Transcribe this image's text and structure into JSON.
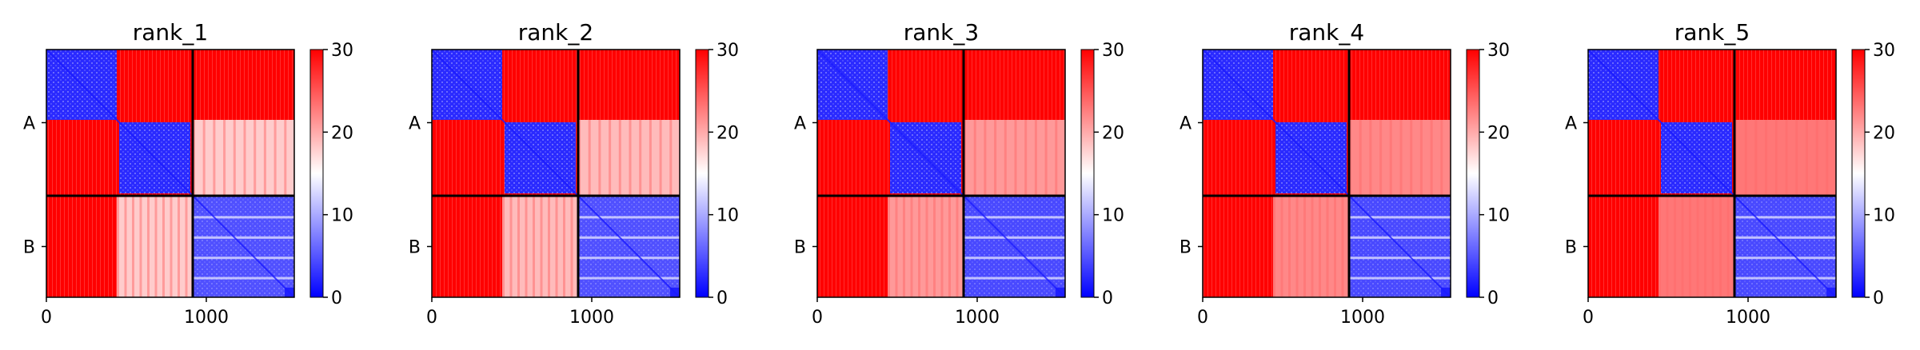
{
  "figure": {
    "background": "#ffffff",
    "colormap": {
      "name": "bwr",
      "low": "#0000ff",
      "mid": "#ffffff",
      "high": "#ff0000"
    }
  },
  "chart_data": {
    "type": "heatmap",
    "value_range": [
      0,
      30
    ],
    "x_range": [
      0,
      1550
    ],
    "x_ticks": [
      0,
      1000
    ],
    "x_tick_labels": [
      "0",
      "1000"
    ],
    "chain_labels": [
      "A",
      "B"
    ],
    "chain_boundary": 915,
    "colorbar_ticks": [
      0,
      10,
      20,
      30
    ],
    "colorbar_tick_labels": [
      "0",
      "10",
      "20",
      "30"
    ],
    "panels": [
      {
        "title": "rank_1",
        "cross_chain_mean": 18,
        "intra_B_mean": 8
      },
      {
        "title": "rank_2",
        "cross_chain_mean": 19,
        "intra_B_mean": 8
      },
      {
        "title": "rank_3",
        "cross_chain_mean": 21,
        "intra_B_mean": 7
      },
      {
        "title": "rank_4",
        "cross_chain_mean": 22,
        "intra_B_mean": 7
      },
      {
        "title": "rank_5",
        "cross_chain_mean": 23,
        "intra_B_mean": 7
      }
    ]
  }
}
